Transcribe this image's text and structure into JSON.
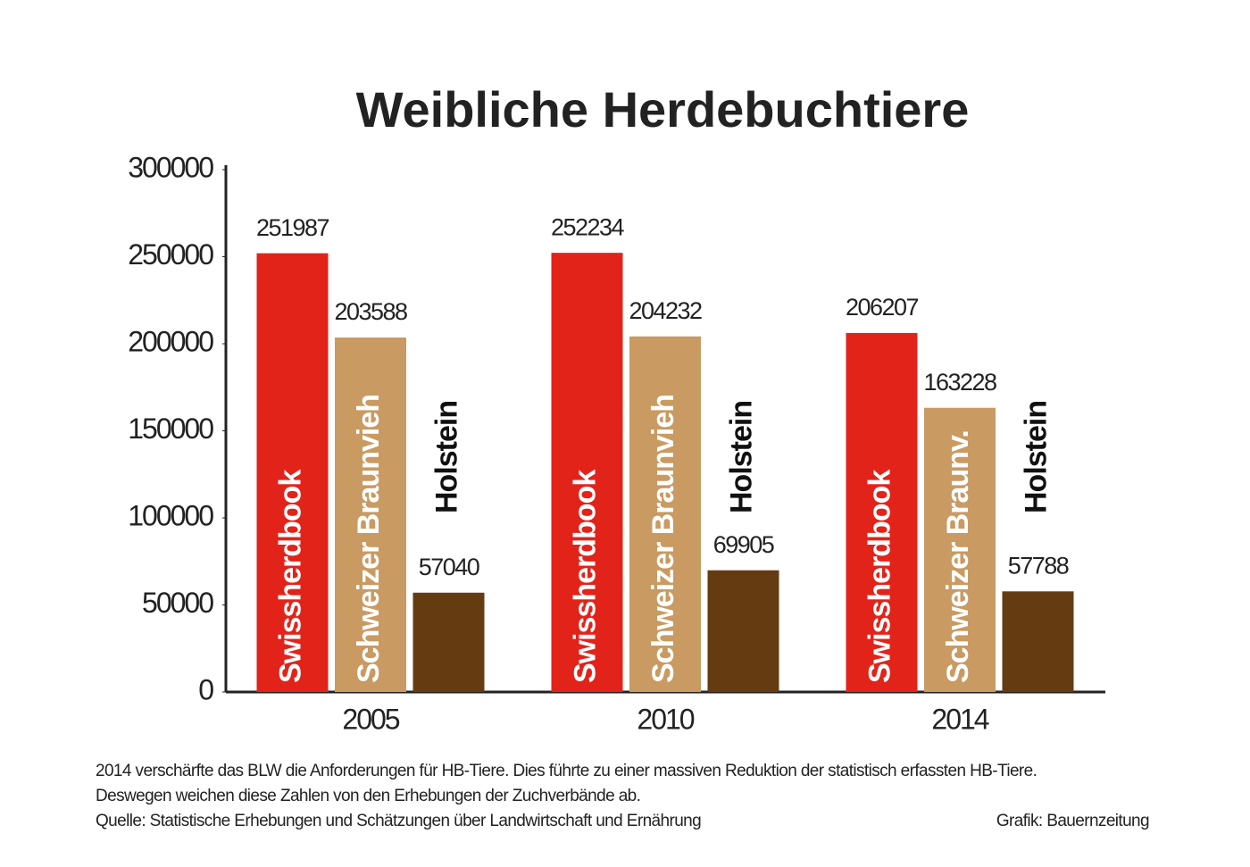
{
  "chart_data": {
    "type": "bar",
    "title": "Weibliche Herdebuchtiere",
    "categories": [
      "2005",
      "2010",
      "2014"
    ],
    "series": [
      {
        "name": "Swissherdbook",
        "color": "#e2231a",
        "labels": [
          "Swissherdbook",
          "Swissherdbook",
          "Swissherdbook"
        ],
        "values": [
          251987,
          252234,
          206207
        ]
      },
      {
        "name": "Schweizer Braunvieh",
        "color": "#c99a62",
        "labels": [
          "Schweizer Braunvieh",
          "Schweizer Braunvieh",
          "Schweizer Braunv."
        ],
        "values": [
          203588,
          204232,
          163228
        ]
      },
      {
        "name": "Holstein",
        "color": "#653b12",
        "labels": [
          "Holstein",
          "Holstein",
          "Holstein"
        ],
        "values": [
          57040,
          69905,
          57788
        ]
      }
    ],
    "ylim": [
      0,
      300000
    ],
    "yticks": [
      0,
      50000,
      100000,
      150000,
      200000,
      250000,
      300000
    ],
    "notes": [
      "2014 verschärfte das BLW die Anforderungen für HB-Tiere. Dies führte zu einer massiven Reduktion der statistisch erfassten HB-Tiere.",
      "Deswegen weichen diese Zahlen von den Erhebungen der Zuchverbände ab."
    ],
    "source": "Quelle: Statistische Erhebungen und Schätzungen über Landwirtschaft und Ernährung",
    "credit": "Grafik: Bauernzeitung"
  }
}
